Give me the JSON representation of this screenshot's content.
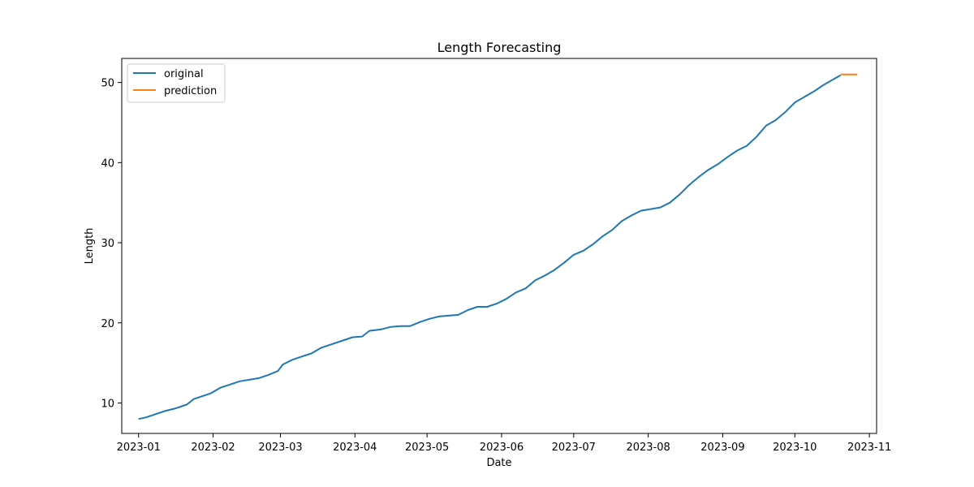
{
  "chart_data": {
    "type": "line",
    "title": "Length Forecasting",
    "xlabel": "Date",
    "ylabel": "Length",
    "x_range": [
      "2022-12-25",
      "2023-11-04"
    ],
    "ylim": [
      6.2,
      53.0
    ],
    "x_ticks": [
      "2023-01",
      "2023-02",
      "2023-03",
      "2023-04",
      "2023-05",
      "2023-06",
      "2023-07",
      "2023-08",
      "2023-09",
      "2023-10",
      "2023-11"
    ],
    "y_ticks": [
      10,
      20,
      30,
      40,
      50
    ],
    "grid": false,
    "legend_position": "upper-left",
    "series": [
      {
        "name": "original",
        "color": "#1f77b4",
        "points": [
          [
            "2023-01-01",
            8.0
          ],
          [
            "2023-01-04",
            8.2
          ],
          [
            "2023-01-08",
            8.6
          ],
          [
            "2023-01-12",
            9.0
          ],
          [
            "2023-01-16",
            9.3
          ],
          [
            "2023-01-21",
            9.8
          ],
          [
            "2023-01-24",
            10.5
          ],
          [
            "2023-01-31",
            11.2
          ],
          [
            "2023-02-04",
            11.9
          ],
          [
            "2023-02-08",
            12.3
          ],
          [
            "2023-02-12",
            12.7
          ],
          [
            "2023-02-16",
            12.9
          ],
          [
            "2023-02-20",
            13.1
          ],
          [
            "2023-02-24",
            13.5
          ],
          [
            "2023-02-28",
            14.0
          ],
          [
            "2023-03-02",
            14.8
          ],
          [
            "2023-03-06",
            15.4
          ],
          [
            "2023-03-10",
            15.8
          ],
          [
            "2023-03-14",
            16.2
          ],
          [
            "2023-03-18",
            16.9
          ],
          [
            "2023-03-22",
            17.3
          ],
          [
            "2023-03-26",
            17.7
          ],
          [
            "2023-03-31",
            18.2
          ],
          [
            "2023-04-04",
            18.3
          ],
          [
            "2023-04-07",
            19.0
          ],
          [
            "2023-04-12",
            19.2
          ],
          [
            "2023-04-16",
            19.5
          ],
          [
            "2023-04-20",
            19.6
          ],
          [
            "2023-04-24",
            19.6
          ],
          [
            "2023-04-28",
            20.1
          ],
          [
            "2023-05-02",
            20.5
          ],
          [
            "2023-05-06",
            20.8
          ],
          [
            "2023-05-10",
            20.9
          ],
          [
            "2023-05-14",
            21.0
          ],
          [
            "2023-05-18",
            21.6
          ],
          [
            "2023-05-22",
            22.0
          ],
          [
            "2023-05-26",
            22.0
          ],
          [
            "2023-05-30",
            22.4
          ],
          [
            "2023-06-03",
            23.0
          ],
          [
            "2023-06-07",
            23.8
          ],
          [
            "2023-06-11",
            24.3
          ],
          [
            "2023-06-15",
            25.3
          ],
          [
            "2023-06-19",
            25.9
          ],
          [
            "2023-06-23",
            26.6
          ],
          [
            "2023-06-27",
            27.5
          ],
          [
            "2023-07-01",
            28.5
          ],
          [
            "2023-07-05",
            29.0
          ],
          [
            "2023-07-09",
            29.8
          ],
          [
            "2023-07-13",
            30.8
          ],
          [
            "2023-07-17",
            31.6
          ],
          [
            "2023-07-21",
            32.7
          ],
          [
            "2023-07-25",
            33.4
          ],
          [
            "2023-07-29",
            34.0
          ],
          [
            "2023-08-02",
            34.2
          ],
          [
            "2023-08-06",
            34.4
          ],
          [
            "2023-08-10",
            35.0
          ],
          [
            "2023-08-14",
            36.0
          ],
          [
            "2023-08-18",
            37.2
          ],
          [
            "2023-08-22",
            38.2
          ],
          [
            "2023-08-26",
            39.1
          ],
          [
            "2023-08-30",
            39.8
          ],
          [
            "2023-09-03",
            40.7
          ],
          [
            "2023-09-07",
            41.5
          ],
          [
            "2023-09-11",
            42.1
          ],
          [
            "2023-09-15",
            43.2
          ],
          [
            "2023-09-19",
            44.6
          ],
          [
            "2023-09-23",
            45.3
          ],
          [
            "2023-09-27",
            46.3
          ],
          [
            "2023-10-01",
            47.5
          ],
          [
            "2023-10-05",
            48.2
          ],
          [
            "2023-10-09",
            48.9
          ],
          [
            "2023-10-13",
            49.7
          ],
          [
            "2023-10-17",
            50.4
          ],
          [
            "2023-10-20",
            50.9
          ]
        ]
      },
      {
        "name": "prediction",
        "color": "#ff7f0e",
        "points": [
          [
            "2023-10-20",
            51.0
          ],
          [
            "2023-10-27",
            51.0
          ]
        ]
      }
    ]
  }
}
